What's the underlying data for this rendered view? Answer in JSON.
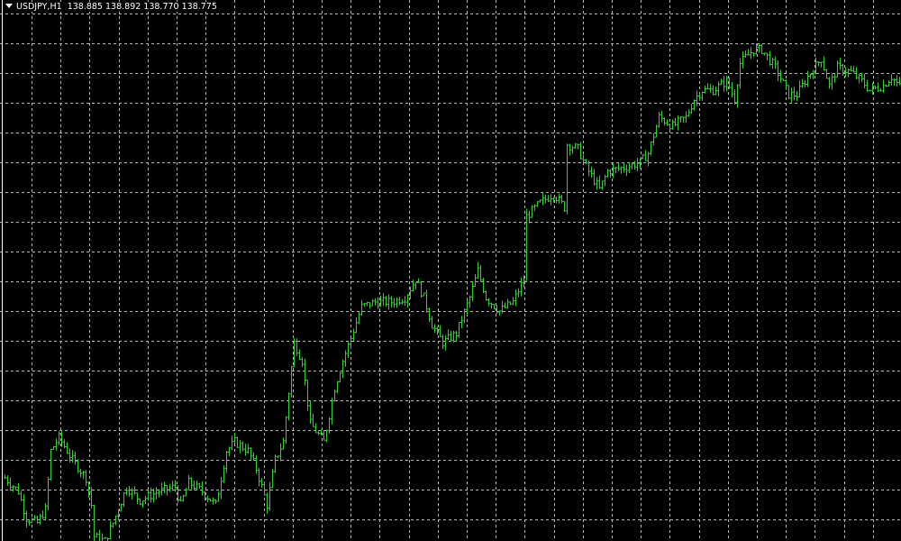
{
  "header": {
    "symbol": "USDJPY,H1",
    "ohlc": "138.885 138.892 138.770 138.775",
    "menu_icon": "triangle-down-icon"
  },
  "colors": {
    "background": "#000000",
    "grid": "#b8b8b8",
    "bars": "#32cd32",
    "text": "#ffffff"
  },
  "chart_data": {
    "type": "line",
    "style": "ohlc-bars",
    "title": "USDJPY,H1",
    "last_bar": {
      "open": 138.885,
      "high": 138.892,
      "low": 138.77,
      "close": 138.775
    },
    "grid": true,
    "xlabel": "",
    "ylabel": "",
    "bar_index": [
      0,
      5,
      8,
      12,
      15,
      17,
      20,
      25,
      30,
      32,
      33,
      37,
      40,
      45,
      50,
      57,
      63,
      65,
      68,
      73,
      78,
      82,
      85,
      90,
      93,
      97,
      100,
      103,
      107,
      110,
      113,
      118,
      122,
      125,
      128,
      132,
      137,
      143,
      148,
      152,
      155,
      158,
      162,
      167,
      172,
      175,
      178,
      183,
      188,
      192,
      193,
      198,
      203,
      207,
      208,
      212,
      215,
      220,
      223,
      230,
      235,
      238,
      242,
      247,
      252,
      255,
      258,
      262,
      267,
      270,
      272,
      277,
      280,
      285,
      290,
      293,
      297,
      302,
      305,
      308,
      313,
      317,
      320,
      325,
      328,
      332
    ],
    "close": [
      137.485,
      137.44,
      137.35,
      137.335,
      137.38,
      137.575,
      137.62,
      137.545,
      137.485,
      137.395,
      137.29,
      137.275,
      137.335,
      137.455,
      137.41,
      137.44,
      137.455,
      137.395,
      137.47,
      137.44,
      137.395,
      137.575,
      137.605,
      137.575,
      137.515,
      137.395,
      137.545,
      137.605,
      137.935,
      137.875,
      137.665,
      137.605,
      137.785,
      137.875,
      137.95,
      138.055,
      138.07,
      138.07,
      138.085,
      138.145,
      138.085,
      137.995,
      137.935,
      137.965,
      138.085,
      138.175,
      138.085,
      138.04,
      138.07,
      138.145,
      138.355,
      138.4,
      138.43,
      138.385,
      138.595,
      138.58,
      138.52,
      138.445,
      138.505,
      138.52,
      138.535,
      138.565,
      138.685,
      138.655,
      138.685,
      138.745,
      138.775,
      138.775,
      138.805,
      138.745,
      138.865,
      138.91,
      138.91,
      138.85,
      138.76,
      138.76,
      138.82,
      138.88,
      138.79,
      138.85,
      138.835,
      138.805,
      138.775,
      138.79,
      138.82,
      138.775
    ],
    "ylim": [
      137.275,
      138.955
    ]
  }
}
